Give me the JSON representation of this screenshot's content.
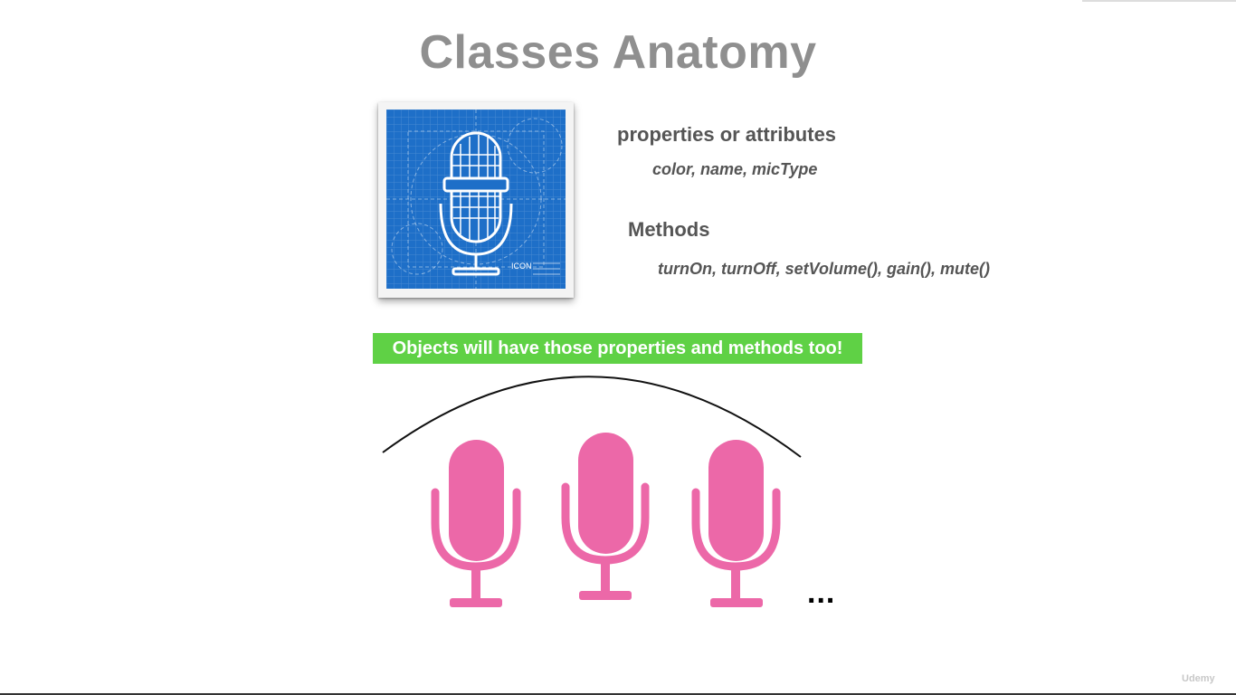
{
  "slide": {
    "title": "Classes Anatomy",
    "properties_heading": "properties or attributes",
    "properties_list": "color, name, micType",
    "methods_heading": "Methods",
    "methods_list": "turnOn, turnOff, setVolume(), gain(), mute()",
    "banner": "Objects will have those properties and methods too!",
    "ellipsis": "...",
    "blueprint_label": "ICON"
  },
  "watermark": "Udemy",
  "icons": {
    "blueprint": "microphone-blueprint-icon",
    "objects": "microphone-icon"
  },
  "colors": {
    "title": "#8f8f8f",
    "text": "#555555",
    "banner": "#5fd145",
    "mic": "#ec68a8",
    "blueprint": "#1e6fc8"
  }
}
